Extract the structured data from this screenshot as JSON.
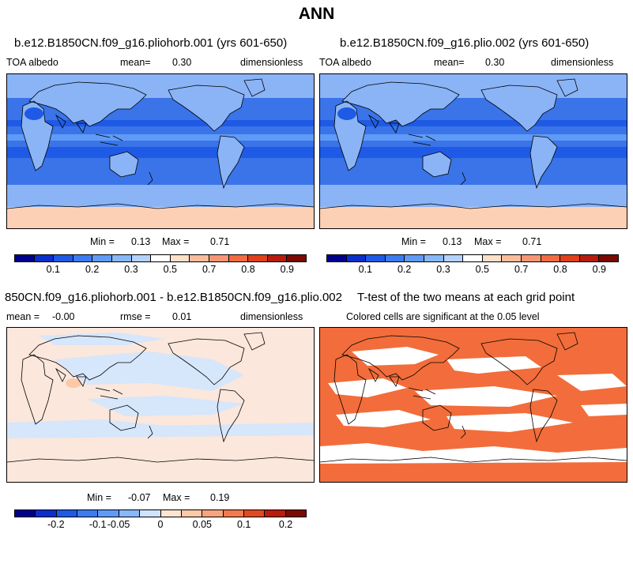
{
  "title": "ANN",
  "colors": {
    "abs_scale": [
      "#00008b",
      "#0a2fcc",
      "#1e5ae6",
      "#3c7cf0",
      "#5f9bf6",
      "#88b8f8",
      "#b4d2fb",
      "#ffffff",
      "#fde0c8",
      "#fbbc9c",
      "#f89672",
      "#f26b43",
      "#e0401a",
      "#b81c0c",
      "#7a0a02"
    ],
    "diff_scale": [
      "#00008b",
      "#0a2fcc",
      "#1e5ae6",
      "#3c7cf0",
      "#5f9bf6",
      "#88b8f8",
      "#cfe3fb",
      "#fde5d2",
      "#fbc8a8",
      "#f8a47c",
      "#f27a4e",
      "#e04a22",
      "#b81c0c",
      "#7a0a02"
    ],
    "ocean_abs": "#3a74e8",
    "land_abs": "#8ab4f6",
    "ice_abs": "#fbd0b4",
    "diff_base": "#fbe7dc",
    "diff_blue": "#d6e6fb",
    "signif": "#f26d3b"
  },
  "panels": {
    "top_left": {
      "title": "b.e12.B1850CN.f09_g16.pliohorb.001 (yrs 601-650)",
      "variable": "TOA albedo",
      "mean_label": "mean=",
      "mean_value": "0.30",
      "units": "dimensionless",
      "min_label": "Min =",
      "min_value": "0.13",
      "max_label": "Max =",
      "max_value": "0.71"
    },
    "top_right": {
      "title": "b.e12.B1850CN.f09_g16.plio.002 (yrs 601-650)",
      "variable": "TOA albedo",
      "mean_label": "mean=",
      "mean_value": "0.30",
      "units": "dimensionless",
      "min_label": "Min =",
      "min_value": "0.13",
      "max_label": "Max =",
      "max_value": "0.71"
    },
    "bottom_left": {
      "title": "850CN.f09_g16.pliohorb.001 - b.e12.B1850CN.f09_g16.plio.002",
      "mean_label": "mean =",
      "mean_value": "-0.00",
      "rmse_label": "rmse =",
      "rmse_value": "0.01",
      "units": "dimensionless",
      "min_label": "Min =",
      "min_value": "-0.07",
      "max_label": "Max =",
      "max_value": "0.19"
    },
    "bottom_right": {
      "title": "T-test of the two means at each grid point",
      "subtitle": "Colored cells are significant at the 0.05 level"
    }
  },
  "colorbar_abs_ticks": [
    "0.1",
    "0.2",
    "0.3",
    "0.5",
    "0.7",
    "0.8",
    "0.9"
  ],
  "colorbar_diff_ticks": [
    "-0.2",
    "-0.1",
    "-0.05",
    "0",
    "0.05",
    "0.1",
    "0.2"
  ]
}
